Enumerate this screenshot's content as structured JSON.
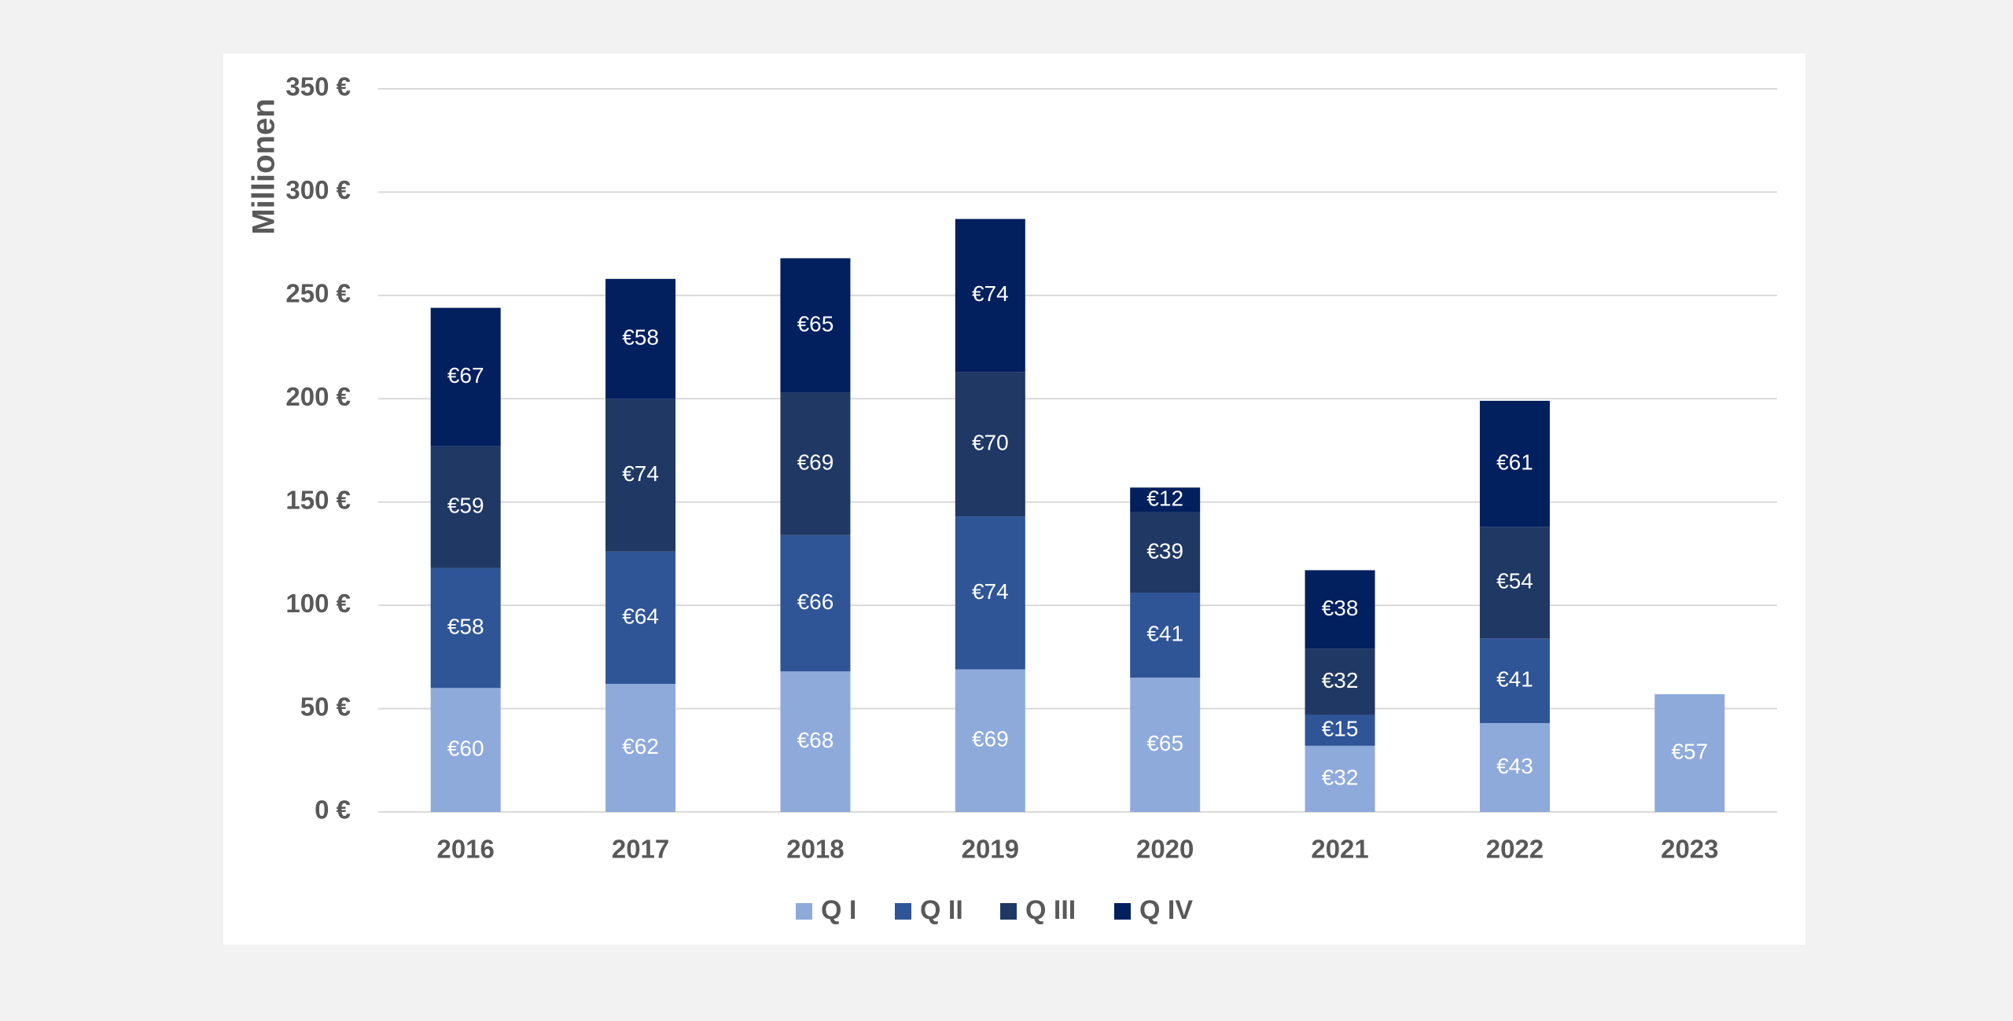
{
  "chart_data": {
    "type": "bar",
    "stacked": true,
    "categories": [
      "2016",
      "2017",
      "2018",
      "2019",
      "2020",
      "2021",
      "2022",
      "2023"
    ],
    "series": [
      {
        "name": "Q I",
        "color": "#8eaadb",
        "values": [
          60,
          62,
          68,
          69,
          65,
          32,
          43,
          57
        ]
      },
      {
        "name": "Q II",
        "color": "#2f5597",
        "values": [
          58,
          64,
          66,
          74,
          41,
          15,
          41,
          null
        ]
      },
      {
        "name": "Q III",
        "color": "#203864",
        "values": [
          59,
          74,
          69,
          70,
          39,
          32,
          54,
          null
        ]
      },
      {
        "name": "Q IV",
        "color": "#021f5e",
        "values": [
          67,
          58,
          65,
          74,
          12,
          38,
          61,
          null
        ]
      }
    ],
    "data_labels": [
      [
        "€60",
        "€62",
        "€68",
        "€69",
        "€65",
        "€32",
        "€43",
        "€57"
      ],
      [
        "€58",
        "€64",
        "€66",
        "€74",
        "€41",
        "€15",
        "€41",
        ""
      ],
      [
        "€59",
        "€74",
        "€69",
        "€70",
        "€39",
        "€32",
        "€54",
        ""
      ],
      [
        "€67",
        "€58",
        "€65",
        "€74",
        "€12",
        "€38",
        "€61",
        ""
      ]
    ],
    "ylabel": "Millionen",
    "xlabel": "",
    "ylim": [
      0,
      350
    ],
    "yticks": [
      0,
      50,
      100,
      150,
      200,
      250,
      300,
      350
    ],
    "ytick_labels": [
      "0 €",
      "50 €",
      "100 €",
      "150 €",
      "200 €",
      "250 €",
      "300 €",
      "350 €"
    ],
    "grid": true,
    "gridline_color": "#d9d9d9",
    "legend_position": "bottom"
  }
}
